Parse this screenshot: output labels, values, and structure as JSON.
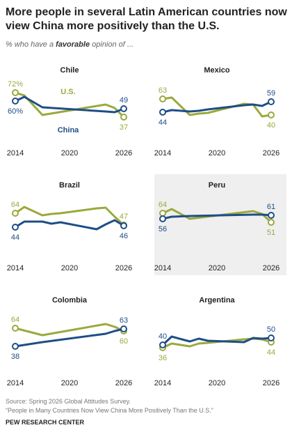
{
  "title": "More people in several Latin American countries now view China more positively than the U.S.",
  "subtitle": [
    "% who have a ",
    "favorable",
    " opinion of ..."
  ],
  "source": "Source: Spring 2026 Global Attitudes Survey.",
  "note": "“People in Many Countries Now View China More Positively Than the U.S.”",
  "credit": "PEW RESEARCH CENTER",
  "chart_data": [
    {
      "type": "line",
      "title": "Chile",
      "x": [
        2014,
        2015,
        2017,
        2024,
        2025,
        2026
      ],
      "xlim": [
        2014,
        2026
      ],
      "xticks": [
        2014,
        2020,
        2026
      ],
      "ylim": [
        25,
        80
      ],
      "series": [
        {
          "name": "U.S.",
          "color": "#9aa93c",
          "values": [
            72,
            68,
            40,
            55,
            50,
            37
          ],
          "value_labels": [
            "72%",
            null,
            null,
            null,
            null,
            null
          ]
        },
        {
          "name": "China",
          "color": "#1d4e86",
          "values": [
            60,
            66,
            51,
            45,
            44,
            49
          ],
          "value_labels": [
            "60%",
            null,
            null,
            null,
            null,
            null
          ]
        }
      ]
    },
    {
      "type": "line",
      "title": "Mexico",
      "x": [
        2014,
        2015,
        2017,
        2018,
        2019,
        2023,
        2024,
        2025,
        2026
      ],
      "xlim": [
        2014,
        2026
      ],
      "xticks": [
        2014,
        2020,
        2026
      ],
      "ylim": [
        25,
        80
      ],
      "series": [
        {
          "color": "#9aa93c",
          "values": [
            63,
            65,
            40,
            42,
            43,
            56,
            55,
            38,
            40
          ]
        },
        {
          "color": "#1d4e86",
          "values": [
            44,
            47,
            45,
            46,
            48,
            54,
            55,
            53,
            59
          ]
        }
      ]
    },
    {
      "type": "line",
      "title": "Brazil",
      "x": [
        2014,
        2015,
        2017,
        2018,
        2019,
        2023,
        2024,
        2025,
        2026
      ],
      "xlim": [
        2014,
        2026
      ],
      "xticks": [
        2014,
        2020,
        2026
      ],
      "ylim": [
        25,
        80
      ],
      "series": [
        {
          "color": "#9aa93c",
          "values": [
            64,
            73,
            61,
            63,
            64,
            71,
            72,
            59,
            47
          ]
        },
        {
          "color": "#1d4e86",
          "values": [
            44,
            52,
            52,
            49,
            51,
            41,
            48,
            54,
            46
          ]
        }
      ]
    },
    {
      "type": "line",
      "title": "Peru",
      "highlight": true,
      "x": [
        2014,
        2015,
        2017,
        2024,
        2025,
        2026
      ],
      "xlim": [
        2014,
        2026
      ],
      "xticks": [
        2014,
        2020,
        2026
      ],
      "ylim": [
        25,
        80
      ],
      "series": [
        {
          "color": "#9aa93c",
          "values": [
            64,
            70,
            56,
            67,
            63,
            51
          ]
        },
        {
          "color": "#1d4e86",
          "values": [
            56,
            59,
            60,
            62,
            62,
            61
          ]
        }
      ]
    },
    {
      "type": "line",
      "title": "Colombia",
      "x": [
        2014,
        2017,
        2024,
        2025,
        2026
      ],
      "xlim": [
        2014,
        2026
      ],
      "xticks": [
        2014,
        2020,
        2026
      ],
      "ylim": [
        25,
        80
      ],
      "series": [
        {
          "color": "#9aa93c",
          "values": [
            64,
            54,
            70,
            66,
            60
          ]
        },
        {
          "color": "#1d4e86",
          "values": [
            38,
            44,
            56,
            60,
            63
          ]
        }
      ]
    },
    {
      "type": "line",
      "title": "Argentina",
      "x": [
        2014,
        2015,
        2017,
        2018,
        2019,
        2023,
        2024,
        2025,
        2026
      ],
      "xlim": [
        2014,
        2026
      ],
      "xticks": [
        2014,
        2020,
        2026
      ],
      "ylim": [
        25,
        80
      ],
      "series": [
        {
          "color": "#9aa93c",
          "values": [
            36,
            42,
            38,
            42,
            43,
            48,
            49,
            48,
            44
          ]
        },
        {
          "color": "#1d4e86",
          "values": [
            40,
            52,
            45,
            49,
            46,
            44,
            50,
            49,
            50
          ]
        }
      ]
    }
  ]
}
